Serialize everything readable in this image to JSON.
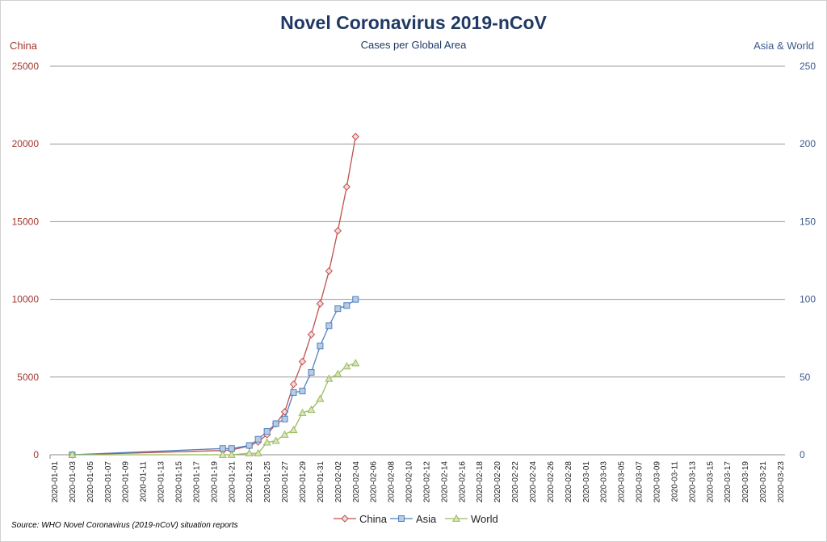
{
  "chart_data": {
    "type": "line",
    "title": "Novel Coronavirus 2019-nCoV",
    "subtitle": "Cases per Global Area",
    "y_left_label": "China",
    "y_right_label": "Asia & World",
    "y_left_ticks": [
      0,
      5000,
      10000,
      15000,
      20000,
      25000
    ],
    "y_right_ticks": [
      0,
      50,
      100,
      150,
      200,
      250
    ],
    "ylim_left": [
      0,
      25000
    ],
    "ylim_right": [
      0,
      250
    ],
    "x_ticks": [
      "2020-01-01",
      "2020-01-03",
      "2020-01-05",
      "2020-01-07",
      "2020-01-09",
      "2020-01-11",
      "2020-01-13",
      "2020-01-15",
      "2020-01-17",
      "2020-01-19",
      "2020-01-21",
      "2020-01-23",
      "2020-01-25",
      "2020-01-27",
      "2020-01-29",
      "2020-01-31",
      "2020-02-02",
      "2020-02-04",
      "2020-02-06",
      "2020-02-08",
      "2020-02-10",
      "2020-02-12",
      "2020-02-14",
      "2020-02-16",
      "2020-02-18",
      "2020-02-20",
      "2020-02-22",
      "2020-02-24",
      "2020-02-26",
      "2020-02-28",
      "2020-03-01",
      "2020-03-03",
      "2020-03-05",
      "2020-03-07",
      "2020-03-09",
      "2020-03-11",
      "2020-03-13",
      "2020-03-15",
      "2020-03-17",
      "2020-03-19",
      "2020-03-21",
      "2020-03-23"
    ],
    "grid": true,
    "legend": "bottom",
    "series": [
      {
        "name": "China",
        "axis": "left",
        "color": "#c0504d",
        "marker": "diamond",
        "points": [
          [
            "2020-01-03",
            0
          ],
          [
            "2020-01-20",
            278
          ],
          [
            "2020-01-21",
            310
          ],
          [
            "2020-01-23",
            571
          ],
          [
            "2020-01-24",
            830
          ],
          [
            "2020-01-25",
            1297
          ],
          [
            "2020-01-26",
            1985
          ],
          [
            "2020-01-27",
            2761
          ],
          [
            "2020-01-28",
            4537
          ],
          [
            "2020-01-29",
            5997
          ],
          [
            "2020-01-30",
            7736
          ],
          [
            "2020-01-31",
            9720
          ],
          [
            "2020-02-01",
            11821
          ],
          [
            "2020-02-02",
            14411
          ],
          [
            "2020-02-03",
            17238
          ],
          [
            "2020-02-04",
            20471
          ]
        ]
      },
      {
        "name": "Asia",
        "axis": "right",
        "color": "#4f81bd",
        "marker": "square",
        "points": [
          [
            "2020-01-03",
            0
          ],
          [
            "2020-01-20",
            4
          ],
          [
            "2020-01-21",
            4
          ],
          [
            "2020-01-23",
            6
          ],
          [
            "2020-01-24",
            10
          ],
          [
            "2020-01-25",
            15
          ],
          [
            "2020-01-26",
            20
          ],
          [
            "2020-01-27",
            23
          ],
          [
            "2020-01-28",
            40
          ],
          [
            "2020-01-29",
            41
          ],
          [
            "2020-01-30",
            53
          ],
          [
            "2020-01-31",
            70
          ],
          [
            "2020-02-01",
            83
          ],
          [
            "2020-02-02",
            94
          ],
          [
            "2020-02-03",
            96
          ],
          [
            "2020-02-04",
            100
          ]
        ]
      },
      {
        "name": "World",
        "axis": "right",
        "color": "#9bbb59",
        "marker": "triangle",
        "points": [
          [
            "2020-01-03",
            0
          ],
          [
            "2020-01-20",
            0
          ],
          [
            "2020-01-21",
            0
          ],
          [
            "2020-01-23",
            1
          ],
          [
            "2020-01-24",
            1
          ],
          [
            "2020-01-25",
            8
          ],
          [
            "2020-01-26",
            9
          ],
          [
            "2020-01-27",
            13
          ],
          [
            "2020-01-28",
            16
          ],
          [
            "2020-01-29",
            27
          ],
          [
            "2020-01-30",
            29
          ],
          [
            "2020-01-31",
            36
          ],
          [
            "2020-02-01",
            49
          ],
          [
            "2020-02-02",
            52
          ],
          [
            "2020-02-03",
            57
          ],
          [
            "2020-02-04",
            59
          ]
        ]
      }
    ],
    "source": "Source: WHO Novel Coronavirus (2019-nCoV) situation reports"
  }
}
